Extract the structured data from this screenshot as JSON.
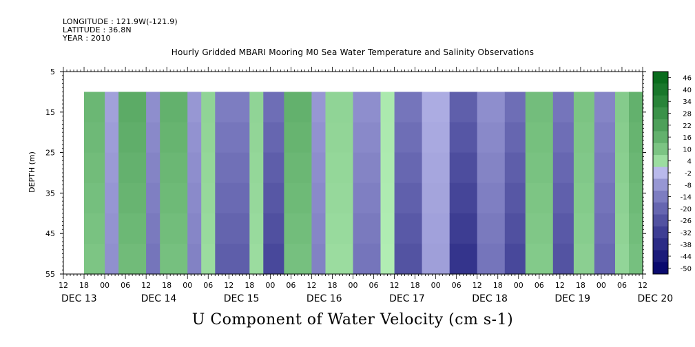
{
  "header": {
    "longitude": "LONGITUDE : 121.9W(-121.9)",
    "latitude": "LATITUDE : 36.8N",
    "year": "YEAR : 2010"
  },
  "chart_data": {
    "type": "heatmap",
    "title": "Hourly Gridded MBARI Mooring M0 Sea Water Temperature and Salinity Observations",
    "xlabel": "U Component of Water Velocity (cm s-1)",
    "ylabel": "DEPTH (m)",
    "y_ticks": [
      5,
      15,
      25,
      35,
      45,
      55
    ],
    "y_range": [
      5,
      55
    ],
    "y_reversed": true,
    "data_depth_range": [
      10,
      55
    ],
    "hour_ticks": [
      "12",
      "18",
      "00",
      "06",
      "12",
      "18",
      "00",
      "06",
      "12",
      "18",
      "00",
      "06",
      "12",
      "18",
      "00",
      "06",
      "12",
      "18",
      "00",
      "06",
      "12",
      "18",
      "00",
      "06",
      "12",
      "18",
      "00",
      "06",
      "12"
    ],
    "date_labels": [
      "DEC 13",
      "DEC 14",
      "DEC 15",
      "DEC 16",
      "DEC 17",
      "DEC 18",
      "DEC 19",
      "DEC 20"
    ],
    "x_range_hours_from_dec13_12": [
      0,
      168
    ],
    "data_start_hours": 6,
    "colorbar": {
      "levels": [
        46,
        40,
        34,
        28,
        22,
        16,
        10,
        4,
        -2,
        -8,
        -14,
        -20,
        -26,
        -32,
        -38,
        -44,
        -50
      ],
      "range": [
        -50,
        50
      ]
    },
    "bands": [
      {
        "start": 6,
        "end": 12,
        "value": 14
      },
      {
        "start": 12,
        "end": 16,
        "value": -6
      },
      {
        "start": 16,
        "end": 24,
        "value": 18
      },
      {
        "start": 24,
        "end": 28,
        "value": -10
      },
      {
        "start": 28,
        "end": 36,
        "value": 16
      },
      {
        "start": 36,
        "end": 40,
        "value": -8
      },
      {
        "start": 40,
        "end": 44,
        "value": 6
      },
      {
        "start": 44,
        "end": 54,
        "value": -14
      },
      {
        "start": 54,
        "end": 58,
        "value": 6
      },
      {
        "start": 58,
        "end": 64,
        "value": -18
      },
      {
        "start": 64,
        "end": 72,
        "value": 16
      },
      {
        "start": 72,
        "end": 76,
        "value": -8
      },
      {
        "start": 76,
        "end": 84,
        "value": 6
      },
      {
        "start": 84,
        "end": 92,
        "value": -10
      },
      {
        "start": 92,
        "end": 96,
        "value": 2
      },
      {
        "start": 96,
        "end": 104,
        "value": -16
      },
      {
        "start": 104,
        "end": 112,
        "value": -4
      },
      {
        "start": 112,
        "end": 120,
        "value": -22
      },
      {
        "start": 120,
        "end": 128,
        "value": -10
      },
      {
        "start": 128,
        "end": 134,
        "value": -18
      },
      {
        "start": 134,
        "end": 142,
        "value": 12
      },
      {
        "start": 142,
        "end": 148,
        "value": -16
      },
      {
        "start": 148,
        "end": 154,
        "value": 10
      },
      {
        "start": 154,
        "end": 160,
        "value": -12
      },
      {
        "start": 160,
        "end": 164,
        "value": 8
      },
      {
        "start": 164,
        "end": 168,
        "value": 16
      }
    ]
  }
}
